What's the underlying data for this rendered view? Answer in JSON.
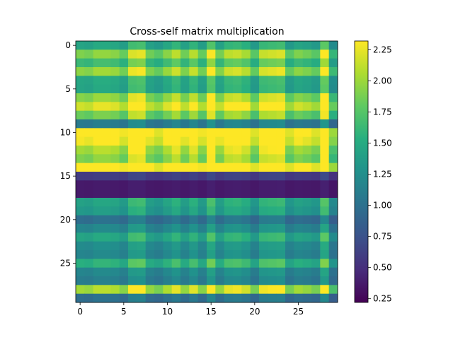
{
  "chart_data": {
    "type": "heatmap",
    "title": "Cross-self matrix multiplication",
    "xlabel": "",
    "ylabel": "",
    "rows": 30,
    "cols": 30,
    "x_ticks": [
      0,
      5,
      10,
      15,
      20,
      25
    ],
    "y_ticks": [
      0,
      5,
      10,
      15,
      20,
      25
    ],
    "colormap": "viridis",
    "colorbar": {
      "vmin": 0.22,
      "vmax": 2.32,
      "ticks": [
        "0.25",
        "0.50",
        "0.75",
        "1.00",
        "1.25",
        "1.50",
        "1.75",
        "2.00",
        "2.25"
      ]
    },
    "row_factors": [
      1.0,
      1.38,
      1.15,
      1.42,
      1.02,
      1.0,
      1.4,
      1.6,
      1.32,
      0.7,
      1.78,
      1.7,
      1.48,
      1.38,
      1.78,
      0.3,
      0.12,
      0.12,
      0.98,
      0.92,
      0.62,
      0.78,
      1.0,
      0.82,
      0.78,
      1.08,
      0.78,
      0.72,
      1.48,
      0.62
    ],
    "col_factors": [
      1.0,
      0.98,
      1.04,
      1.04,
      1.02,
      0.95,
      1.18,
      1.2,
      0.97,
      0.92,
      1.02,
      1.12,
      0.97,
      1.11,
      0.95,
      1.24,
      0.98,
      1.12,
      1.14,
      1.08,
      0.92,
      1.14,
      1.16,
      1.18,
      0.92,
      1.0,
      0.97,
      0.92,
      1.28,
      0.82
    ],
    "value_base": 0.22,
    "value_scale": 1.22,
    "value_range": [
      0.22,
      2.32
    ]
  }
}
